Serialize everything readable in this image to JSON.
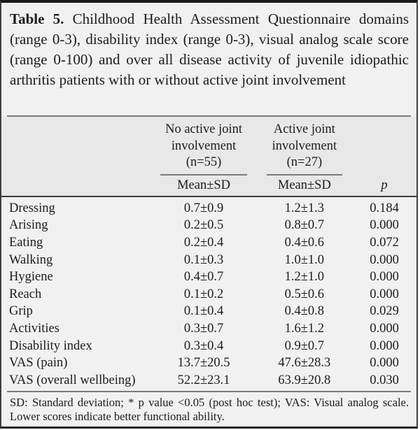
{
  "colors": {
    "page_bg": "#ffffff",
    "table_bg": "#f1f1f1",
    "header_band_bg": "#e8e8e9",
    "border_dark": "#1a1a1a",
    "border_side": "#3f3f3f",
    "rule_gray": "#7a7a7a",
    "rule_dark": "#3a3a3a",
    "text": "#1c1c1c"
  },
  "table": {
    "title_label": "Table 5.",
    "title_text": "Childhood Health Assessment Questionnaire domains (range 0-3), disability index (range 0-3), visual analog scale score (range 0-100) and over all disease activity of juvenile idiopathic arthritis patients with or without active joint involvement",
    "column_groups": [
      {
        "label": "No active joint\ninvolvement\n(n=55)"
      },
      {
        "label": "Active joint\ninvolvement\n(n=27)"
      }
    ],
    "subheaders": {
      "no_active": "Mean±SD",
      "active": "Mean±SD",
      "p": "p"
    },
    "rows": [
      {
        "label": "Dressing",
        "no_active": "0.7±0.9",
        "active": "1.2±1.3",
        "p": "0.184"
      },
      {
        "label": "Arising",
        "no_active": "0.2±0.5",
        "active": "0.8±0.7",
        "p": "0.000"
      },
      {
        "label": "Eating",
        "no_active": "0.2±0.4",
        "active": "0.4±0.6",
        "p": "0.072"
      },
      {
        "label": "Walking",
        "no_active": "0.1±0.3",
        "active": "1.0±1.0",
        "p": "0.000"
      },
      {
        "label": "Hygiene",
        "no_active": "0.4±0.7",
        "active": "1.2±1.0",
        "p": "0.000"
      },
      {
        "label": "Reach",
        "no_active": "0.1±0.2",
        "active": "0.5±0.6",
        "p": "0.000"
      },
      {
        "label": "Grip",
        "no_active": "0.1±0.4",
        "active": "0.4±0.8",
        "p": "0.029"
      },
      {
        "label": "Activities",
        "no_active": "0.3±0.7",
        "active": "1.6±1.2",
        "p": "0.000"
      },
      {
        "label": "Disability index",
        "no_active": "0.3±0.4",
        "active": "0.9±0.7",
        "p": "0.000"
      },
      {
        "label": "VAS (pain)",
        "no_active": "13.7±20.5",
        "active": "47.6±28.3",
        "p": "0.000"
      },
      {
        "label": "VAS (overall wellbeing)",
        "no_active": "52.2±23.1",
        "active": "63.9±20.8",
        "p": "0.030"
      }
    ],
    "footnote": "SD: Standard deviation; * p value <0.05 (post hoc test); VAS: Visual analog scale. Lower scores indicate better functional ability."
  }
}
